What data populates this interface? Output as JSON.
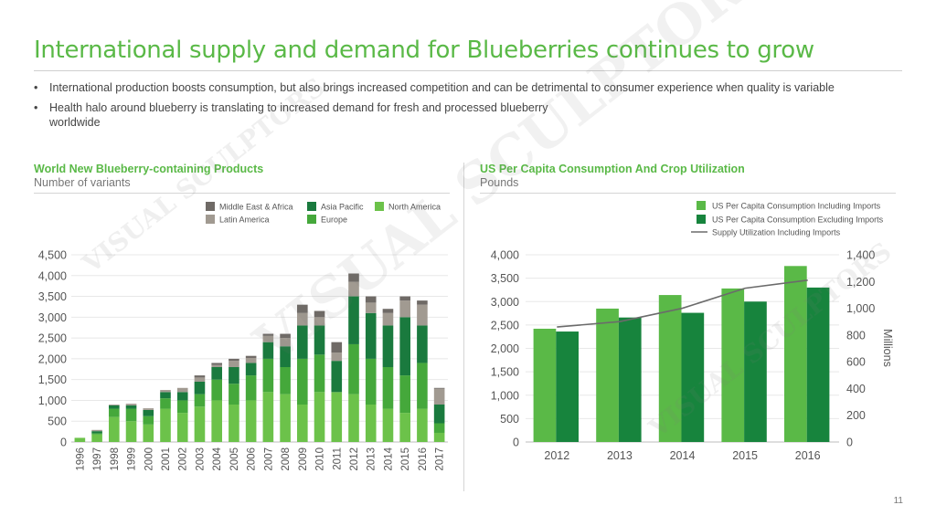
{
  "page": {
    "title": "International supply and demand for Blueberries continues to grow",
    "bullets": [
      "International production boosts consumption, but also brings increased competition and can be detrimental to consumer experience when quality is variable",
      "Health halo around blueberry is translating to increased demand for fresh and processed blueberry worldwide"
    ],
    "bullet_marker": "•",
    "page_number": "11",
    "watermark": "VISUAL SCULPTORS"
  },
  "left_chart": {
    "title": "World New Blueberry-containing Products",
    "subtitle": "Number of variants"
  },
  "right_chart": {
    "title": "US Per Capita Consumption And Crop Utilization",
    "subtitle": "Pounds"
  },
  "chart_data": [
    {
      "type": "bar",
      "stacked": true,
      "title": "World New Blueberry-containing Products",
      "subtitle": "Number of variants",
      "categories": [
        "1996",
        "1997",
        "1998",
        "1999",
        "2000",
        "2001",
        "2002",
        "2003",
        "2004",
        "2005",
        "2006",
        "2007",
        "2008",
        "2009",
        "2010",
        "2011",
        "2012",
        "2013",
        "2014",
        "2015",
        "2016",
        "2017"
      ],
      "series": [
        {
          "name": "North America",
          "color": "#6cc24a",
          "values": [
            100,
            180,
            600,
            500,
            420,
            800,
            700,
            850,
            1000,
            900,
            1000,
            1200,
            1150,
            900,
            1200,
            1200,
            1150,
            900,
            800,
            700,
            800,
            220
          ]
        },
        {
          "name": "Europe",
          "color": "#45a83b",
          "values": [
            0,
            30,
            200,
            300,
            200,
            250,
            300,
            300,
            500,
            500,
            600,
            800,
            650,
            1100,
            900,
            0,
            1200,
            1100,
            1000,
            900,
            1100,
            230
          ]
        },
        {
          "name": "Asia Pacific",
          "color": "#1a7a3e",
          "values": [
            0,
            50,
            80,
            80,
            150,
            150,
            200,
            300,
            300,
            400,
            300,
            400,
            500,
            800,
            700,
            750,
            1150,
            1100,
            1000,
            1400,
            900,
            450
          ]
        },
        {
          "name": "Latin America",
          "color": "#a19a91",
          "values": [
            0,
            30,
            20,
            40,
            40,
            50,
            100,
            100,
            50,
            150,
            120,
            150,
            200,
            300,
            200,
            200,
            350,
            250,
            300,
            400,
            500,
            380
          ]
        },
        {
          "name": "Middle East & Africa",
          "color": "#6f6a66",
          "values": [
            0,
            0,
            0,
            0,
            0,
            0,
            0,
            50,
            50,
            50,
            50,
            50,
            100,
            200,
            150,
            250,
            200,
            150,
            100,
            100,
            100,
            20
          ]
        }
      ],
      "legend": [
        "Middle East & Africa",
        "Asia Pacific",
        "North America",
        "Latin America",
        "Europe"
      ],
      "ylim": [
        0,
        4500
      ],
      "yticks": [
        "0",
        "500",
        "1,000",
        "1,500",
        "2,000",
        "2,500",
        "3,000",
        "3,500",
        "4,000",
        "4,500"
      ],
      "grid": true,
      "legend_position": "top"
    },
    {
      "type": "bar",
      "title": "US Per Capita Consumption And Crop Utilization",
      "subtitle": "Pounds",
      "categories": [
        "2012",
        "2013",
        "2014",
        "2015",
        "2016"
      ],
      "series": [
        {
          "name": "US Per Capita Consumption Including Imports",
          "color": "#5ab947",
          "values": [
            2420,
            2850,
            3140,
            3280,
            3760
          ]
        },
        {
          "name": "US Per Capita Consumption Excluding Imports",
          "color": "#17843d",
          "values": [
            2360,
            2660,
            2760,
            3000,
            3300
          ]
        }
      ],
      "line_series": {
        "name": "Supply Utilization Including Imports",
        "color": "#6b6b6b",
        "values": [
          860,
          900,
          1000,
          1150,
          1210
        ]
      },
      "ylim": [
        0,
        4000
      ],
      "yticks": [
        "0",
        "500",
        "1,000",
        "1,500",
        "2,000",
        "2,500",
        "3,000",
        "3,500",
        "4,000"
      ],
      "y2lim": [
        0,
        1400
      ],
      "y2ticks": [
        "0",
        "200",
        "400",
        "600",
        "800",
        "1,000",
        "1,200",
        "1,400"
      ],
      "y2label": "Millions",
      "grid": true,
      "legend_position": "top-right"
    }
  ]
}
